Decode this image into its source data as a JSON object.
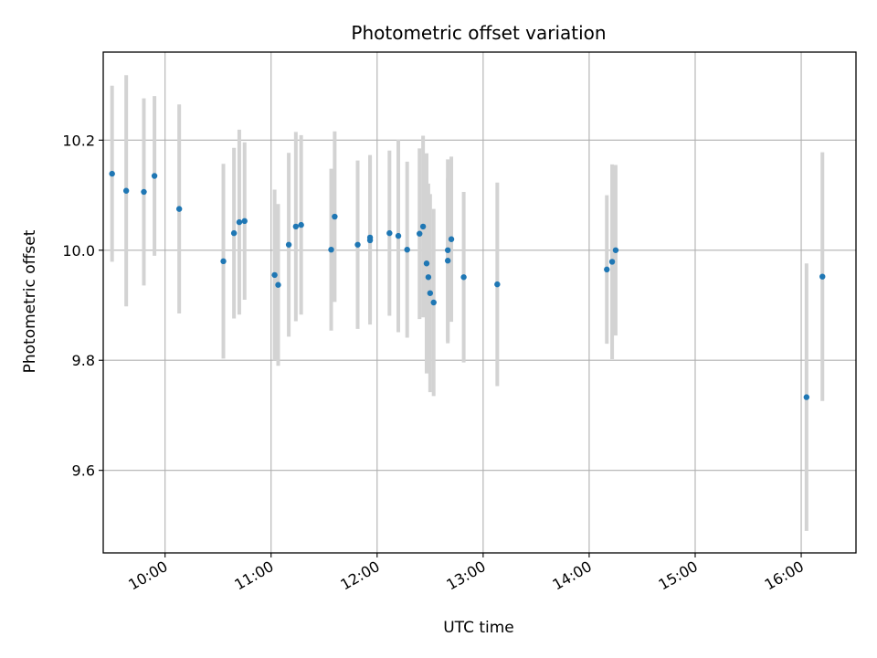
{
  "chart_data": {
    "type": "scatter",
    "title": "Photometric offset variation",
    "xlabel": "UTC time",
    "ylabel": "Photometric offset",
    "grid": true,
    "xlim": [
      "09:25",
      "16:31"
    ],
    "ylim": [
      9.45,
      10.36
    ],
    "x_ticks": [
      "10:00",
      "11:00",
      "12:00",
      "13:00",
      "14:00",
      "15:00",
      "16:00"
    ],
    "y_ticks": [
      9.6,
      9.8,
      10.0,
      10.2
    ],
    "y_tick_labels": [
      "9.6",
      "9.8",
      "10.0",
      "10.2"
    ],
    "marker_color": "#1f77b4",
    "errorbar_color": "#d3d3d3",
    "points": [
      {
        "t": "09:30",
        "y": 10.139,
        "err": 0.16
      },
      {
        "t": "09:38",
        "y": 10.108,
        "err": 0.21
      },
      {
        "t": "09:48",
        "y": 10.106,
        "err": 0.17
      },
      {
        "t": "09:54",
        "y": 10.135,
        "err": 0.145
      },
      {
        "t": "10:08",
        "y": 10.075,
        "err": 0.19
      },
      {
        "t": "10:33",
        "y": 9.98,
        "err": 0.177
      },
      {
        "t": "10:39",
        "y": 10.031,
        "err": 0.155
      },
      {
        "t": "10:42",
        "y": 10.051,
        "err": 0.168
      },
      {
        "t": "10:45",
        "y": 10.053,
        "err": 0.143
      },
      {
        "t": "11:02",
        "y": 9.955,
        "err": 0.155
      },
      {
        "t": "11:04",
        "y": 9.937,
        "err": 0.147
      },
      {
        "t": "11:10",
        "y": 10.01,
        "err": 0.167
      },
      {
        "t": "11:14",
        "y": 10.043,
        "err": 0.172
      },
      {
        "t": "11:17",
        "y": 10.046,
        "err": 0.163
      },
      {
        "t": "11:34",
        "y": 10.001,
        "err": 0.147
      },
      {
        "t": "11:36",
        "y": 10.061,
        "err": 0.155
      },
      {
        "t": "11:49",
        "y": 10.01,
        "err": 0.153
      },
      {
        "t": "11:56",
        "y": 10.018,
        "err": 0.153
      },
      {
        "t": "11:56",
        "y": 10.023,
        "err": 0.15
      },
      {
        "t": "12:07",
        "y": 10.031,
        "err": 0.15
      },
      {
        "t": "12:12",
        "y": 10.026,
        "err": 0.175
      },
      {
        "t": "12:17",
        "y": 10.001,
        "err": 0.16
      },
      {
        "t": "12:24",
        "y": 10.03,
        "err": 0.155
      },
      {
        "t": "12:26",
        "y": 10.043,
        "err": 0.165
      },
      {
        "t": "12:28",
        "y": 9.976,
        "err": 0.2
      },
      {
        "t": "12:29",
        "y": 9.951,
        "err": 0.17
      },
      {
        "t": "12:30",
        "y": 9.922,
        "err": 0.18
      },
      {
        "t": "12:32",
        "y": 9.905,
        "err": 0.17
      },
      {
        "t": "12:40",
        "y": 10.0,
        "err": 0.165
      },
      {
        "t": "12:40",
        "y": 9.981,
        "err": 0.15
      },
      {
        "t": "12:42",
        "y": 10.02,
        "err": 0.15
      },
      {
        "t": "12:49",
        "y": 9.951,
        "err": 0.155
      },
      {
        "t": "13:08",
        "y": 9.938,
        "err": 0.185
      },
      {
        "t": "14:10",
        "y": 9.965,
        "err": 0.135
      },
      {
        "t": "14:13",
        "y": 9.979,
        "err": 0.177
      },
      {
        "t": "14:15",
        "y": 10.0,
        "err": 0.155
      },
      {
        "t": "16:03",
        "y": 9.733,
        "err": 0.243
      },
      {
        "t": "16:12",
        "y": 9.952,
        "err": 0.226
      }
    ]
  }
}
